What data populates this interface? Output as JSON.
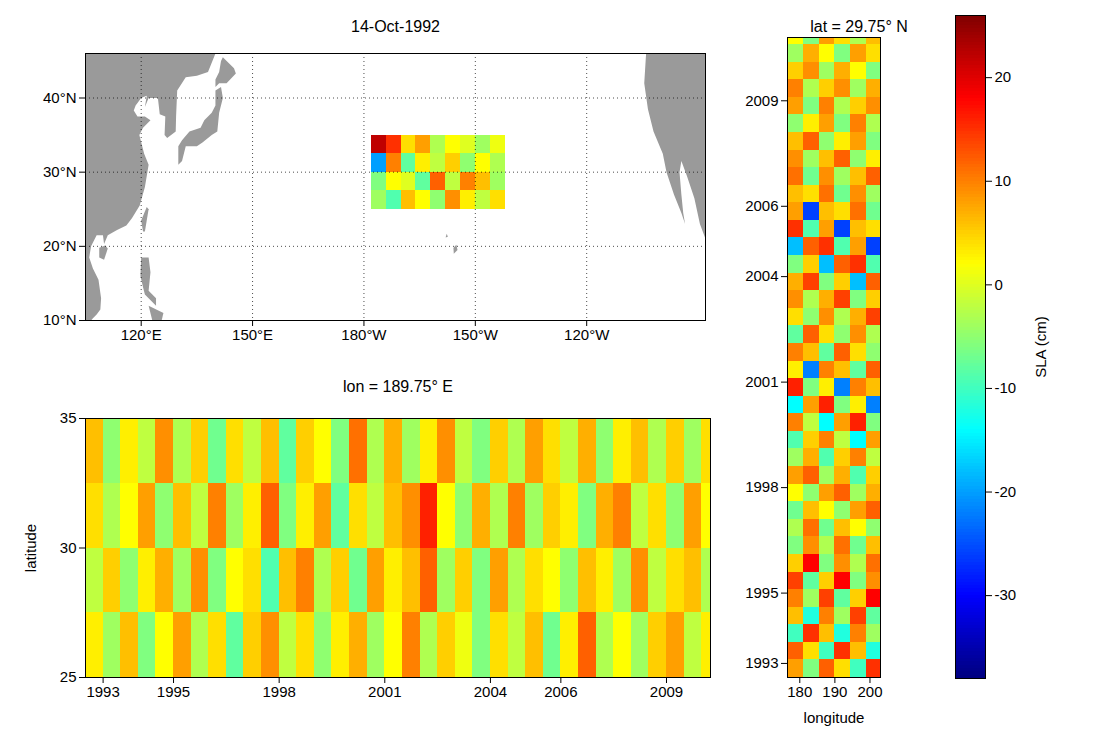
{
  "chart_data": [
    {
      "type": "map",
      "title": "14-Oct-1992",
      "xlim": [
        105,
        272
      ],
      "ylim": [
        10,
        46
      ],
      "xticks": [
        {
          "value": 120,
          "label": "120°E"
        },
        {
          "value": 150,
          "label": "150°E"
        },
        {
          "value": 180,
          "label": "180°W"
        },
        {
          "value": 210,
          "label": "150°W"
        },
        {
          "value": 240,
          "label": "120°W"
        }
      ],
      "yticks": [
        {
          "value": 10,
          "label": "10°N"
        },
        {
          "value": 20,
          "label": "20°N"
        },
        {
          "value": 30,
          "label": "30°N"
        },
        {
          "value": 40,
          "label": "40°N"
        }
      ],
      "grid": true,
      "land": [
        [
          [
            105,
            46
          ],
          [
            140,
            46
          ],
          [
            138,
            43.5
          ],
          [
            135,
            43
          ],
          [
            132,
            42.8
          ],
          [
            129.7,
            41
          ],
          [
            129.4,
            37.5
          ],
          [
            129.3,
            35.5
          ],
          [
            127,
            34.6
          ],
          [
            126.3,
            35
          ],
          [
            126.5,
            37.5
          ],
          [
            125,
            37.8
          ],
          [
            124.5,
            40
          ],
          [
            122,
            40
          ],
          [
            121,
            38.8
          ],
          [
            121.5,
            40.3
          ],
          [
            120,
            40
          ],
          [
            118.5,
            39
          ],
          [
            118,
            38.3
          ],
          [
            119,
            37.5
          ],
          [
            121,
            37.5
          ],
          [
            122.5,
            37
          ],
          [
            120.5,
            36
          ],
          [
            119.5,
            35
          ],
          [
            120.8,
            32.5
          ],
          [
            122,
            31
          ],
          [
            121.5,
            29.5
          ],
          [
            121,
            28
          ],
          [
            119.6,
            25.5
          ],
          [
            117.5,
            23.8
          ],
          [
            116,
            22.8
          ],
          [
            113.5,
            22.2
          ],
          [
            111,
            21.5
          ],
          [
            110,
            20.3
          ],
          [
            109.7,
            21.5
          ],
          [
            108,
            21.5
          ],
          [
            106.5,
            20
          ],
          [
            106,
            18.5
          ],
          [
            107,
            17
          ],
          [
            108.5,
            15.5
          ],
          [
            109.2,
            13
          ],
          [
            109,
            11.5
          ],
          [
            108,
            10.8
          ],
          [
            107,
            10.3
          ],
          [
            106.5,
            10
          ],
          [
            105,
            10
          ]
        ],
        [
          [
            108.7,
            18.5
          ],
          [
            110,
            18.2
          ],
          [
            111,
            19.7
          ],
          [
            110.3,
            20.1
          ],
          [
            108.7,
            19.8
          ]
        ],
        [
          [
            130,
            31
          ],
          [
            131,
            31.5
          ],
          [
            132,
            33.5
          ],
          [
            135,
            33.5
          ],
          [
            136.5,
            34
          ],
          [
            139,
            35
          ],
          [
            140.5,
            35.5
          ],
          [
            141,
            38
          ],
          [
            142,
            40
          ],
          [
            141.5,
            41.5
          ],
          [
            140,
            41
          ],
          [
            140,
            39
          ],
          [
            139,
            38
          ],
          [
            137,
            37
          ],
          [
            136,
            36
          ],
          [
            133,
            35.5
          ],
          [
            131,
            34.3
          ],
          [
            130,
            33.5
          ]
        ],
        [
          [
            140,
            41.5
          ],
          [
            141,
            42
          ],
          [
            143,
            42
          ],
          [
            145.5,
            43.3
          ],
          [
            145,
            44
          ],
          [
            142,
            45.5
          ],
          [
            141.5,
            45
          ],
          [
            141,
            43.5
          ],
          [
            140,
            42.5
          ]
        ],
        [
          [
            120.5,
            22
          ],
          [
            121,
            22
          ],
          [
            122,
            25
          ],
          [
            121.5,
            25.3
          ],
          [
            120,
            23.5
          ]
        ],
        [
          [
            120,
            18.5
          ],
          [
            122,
            18.5
          ],
          [
            122.5,
            16.5
          ],
          [
            122,
            14
          ],
          [
            124,
            13
          ],
          [
            124,
            12
          ],
          [
            121,
            13.5
          ],
          [
            120.5,
            14.5
          ],
          [
            119.8,
            16
          ]
        ],
        [
          [
            122,
            12
          ],
          [
            126,
            11
          ],
          [
            125.5,
            10
          ],
          [
            123,
            10
          ]
        ],
        [
          [
            204.2,
            19
          ],
          [
            205.2,
            19.5
          ],
          [
            204.9,
            20.2
          ],
          [
            204.1,
            19.8
          ]
        ],
        [
          [
            202,
            21.2
          ],
          [
            202.6,
            21.3
          ],
          [
            202.3,
            21.7
          ]
        ],
        [
          [
            272,
            46
          ],
          [
            256,
            46
          ],
          [
            255.5,
            42
          ],
          [
            256.5,
            38.5
          ],
          [
            258,
            35.5
          ],
          [
            260.5,
            32.5
          ],
          [
            261.5,
            30
          ],
          [
            263.5,
            27
          ],
          [
            265.5,
            24.5
          ],
          [
            266.5,
            23
          ],
          [
            266,
            24.5
          ],
          [
            265.5,
            27
          ],
          [
            265,
            30
          ],
          [
            265.5,
            31.5
          ],
          [
            267,
            29.5
          ],
          [
            269,
            26.5
          ],
          [
            270.5,
            23
          ],
          [
            272,
            21
          ]
        ]
      ],
      "inset": {
        "x_bins": [
          182,
          186,
          190,
          194,
          198,
          202,
          206,
          210,
          214,
          218
        ],
        "y_bins": [
          25,
          27.5,
          30,
          32.5,
          35
        ],
        "values": [
          [
            -4,
            -9,
            6,
            2,
            -5,
            9,
            3,
            -2,
            4
          ],
          [
            -6,
            2,
            0,
            -8,
            12,
            -2,
            10,
            6,
            -4
          ],
          [
            -20,
            10,
            -8,
            3,
            -2,
            5,
            -5,
            2,
            -3
          ],
          [
            22,
            15,
            4,
            8,
            -3,
            2,
            0,
            -4,
            1
          ]
        ]
      }
    },
    {
      "type": "heatmap",
      "title": "lon = 189.75° E",
      "ylabel": "latitude",
      "xlim": [
        1992.5,
        2010.25
      ],
      "ylim": [
        25,
        35
      ],
      "xticks": [
        1993,
        1995,
        1998,
        2001,
        2004,
        2006,
        2009
      ],
      "yticks": [
        25,
        30,
        35
      ],
      "x_bins": [
        1992.5,
        1993,
        1993.5,
        1994,
        1994.5,
        1995,
        1995.5,
        1996,
        1996.5,
        1997,
        1997.5,
        1998,
        1998.5,
        1999,
        1999.5,
        2000,
        2000.5,
        2001,
        2001.5,
        2002,
        2002.5,
        2003,
        2003.5,
        2004,
        2004.5,
        2005,
        2005.5,
        2006,
        2006.5,
        2007,
        2007.5,
        2008,
        2008.5,
        2009,
        2009.5,
        2010,
        2010.25
      ],
      "y_bins": [
        25,
        27.5,
        30,
        32.5,
        35
      ],
      "values": [
        [
          3,
          -4,
          6,
          -6,
          2,
          8,
          -3,
          4,
          -8,
          5,
          9,
          -2,
          4,
          -5,
          3,
          7,
          -4,
          2,
          10,
          -3,
          5,
          1,
          -6,
          4,
          -2,
          6,
          -7,
          3,
          12,
          -3,
          2,
          -4,
          5,
          8,
          -2,
          3
        ],
        [
          -2,
          5,
          -5,
          3,
          7,
          -4,
          9,
          -6,
          2,
          4,
          -9,
          6,
          10,
          -3,
          5,
          -7,
          8,
          3,
          6,
          12,
          -4,
          5,
          -6,
          8,
          -3,
          4,
          2,
          -5,
          6,
          3,
          -4,
          9,
          -2,
          4,
          6,
          -3
        ],
        [
          4,
          -3,
          2,
          8,
          -5,
          6,
          -2,
          10,
          -4,
          3,
          12,
          -6,
          3,
          8,
          -8,
          4,
          -2,
          6,
          9,
          16,
          2,
          -5,
          7,
          -3,
          10,
          -4,
          5,
          3,
          -6,
          7,
          10,
          -2,
          4,
          -5,
          8,
          2
        ],
        [
          6,
          -5,
          3,
          -2,
          9,
          -3,
          5,
          -7,
          4,
          -2,
          6,
          -8,
          5,
          2,
          -6,
          11,
          -3,
          7,
          -4,
          3,
          9,
          -2,
          -6,
          5,
          -3,
          8,
          4,
          -2,
          7,
          -5,
          3,
          6,
          -3,
          5,
          -4,
          4
        ]
      ]
    },
    {
      "type": "heatmap",
      "title": "lat = 29.75° N",
      "xlabel": "longitude",
      "xlim": [
        176.5,
        203
      ],
      "ylim": [
        1992.6,
        2010.8
      ],
      "xticks": [
        180,
        190,
        200
      ],
      "yticks": [
        1993,
        1995,
        1998,
        2001,
        2004,
        2006,
        2009
      ],
      "x_bins": [
        176.5,
        181,
        185.5,
        190,
        194.5,
        199,
        203
      ],
      "y_bins": [
        1992.6,
        1993.1,
        1993.6,
        1994.1,
        1994.6,
        1995.1,
        1995.6,
        1996.1,
        1996.6,
        1997.1,
        1997.6,
        1998.1,
        1998.6,
        1999.1,
        1999.6,
        2000.1,
        2000.6,
        2001.1,
        2001.6,
        2002.1,
        2002.6,
        2003.1,
        2003.6,
        2004.1,
        2004.6,
        2005.1,
        2005.6,
        2006.1,
        2006.6,
        2007.1,
        2007.6,
        2008.1,
        2008.6,
        2009.1,
        2009.6,
        2010.1,
        2010.6,
        2010.8
      ],
      "values": [
        [
          8,
          -6,
          12,
          4,
          -10,
          15
        ],
        [
          12,
          4,
          -10,
          15,
          6,
          -12
        ],
        [
          -10,
          15,
          6,
          -12,
          10,
          -4
        ],
        [
          6,
          -12,
          10,
          -4,
          14,
          -8
        ],
        [
          10,
          -4,
          14,
          -8,
          5,
          18
        ],
        [
          14,
          -8,
          5,
          18,
          -6,
          9
        ],
        [
          5,
          18,
          -6,
          9,
          -3,
          11
        ],
        [
          -6,
          9,
          -3,
          11,
          -7,
          6
        ],
        [
          -3,
          11,
          -7,
          6,
          2,
          -5
        ],
        [
          -7,
          6,
          2,
          -5,
          8,
          12
        ],
        [
          2,
          -5,
          8,
          12,
          -4,
          7
        ],
        [
          8,
          12,
          -4,
          7,
          -9,
          5
        ],
        [
          -4,
          7,
          -9,
          5,
          10,
          -2
        ],
        [
          -9,
          5,
          10,
          -2,
          -14,
          8
        ],
        [
          10,
          -2,
          -14,
          8,
          16,
          -6
        ],
        [
          -14,
          8,
          16,
          -6,
          3,
          -22
        ],
        [
          16,
          -6,
          3,
          -22,
          10,
          6
        ],
        [
          3,
          -22,
          10,
          6,
          -8,
          12
        ],
        [
          10,
          6,
          -8,
          12,
          4,
          -5
        ],
        [
          -8,
          12,
          4,
          -5,
          9,
          -3
        ],
        [
          4,
          -5,
          9,
          -3,
          7,
          14
        ],
        [
          9,
          -3,
          7,
          14,
          -6,
          5
        ],
        [
          7,
          14,
          -6,
          5,
          -18,
          12
        ],
        [
          -6,
          5,
          -18,
          12,
          15,
          -9
        ],
        [
          -18,
          12,
          15,
          -9,
          8,
          -26
        ],
        [
          15,
          -9,
          8,
          -26,
          6,
          4
        ],
        [
          8,
          -26,
          6,
          4,
          11,
          -7
        ],
        [
          6,
          4,
          11,
          -7,
          9,
          -4
        ],
        [
          11,
          -7,
          9,
          -4,
          6,
          12
        ],
        [
          9,
          -4,
          6,
          12,
          -5,
          3
        ],
        [
          6,
          12,
          -5,
          3,
          8,
          -6
        ],
        [
          -5,
          3,
          8,
          -6,
          10,
          -3
        ],
        [
          8,
          -6,
          10,
          -3,
          5,
          9
        ],
        [
          10,
          -3,
          5,
          9,
          -4,
          7
        ],
        [
          5,
          9,
          -4,
          7,
          2,
          -6
        ],
        [
          -4,
          7,
          2,
          -6,
          8,
          4
        ],
        [
          2,
          -6,
          8,
          4,
          -3,
          6
        ]
      ]
    },
    {
      "type": "colorbar",
      "label": "SLA (cm)",
      "range": [
        -38,
        26
      ],
      "ticks": [
        -30,
        -20,
        -10,
        0,
        10,
        20
      ]
    }
  ]
}
